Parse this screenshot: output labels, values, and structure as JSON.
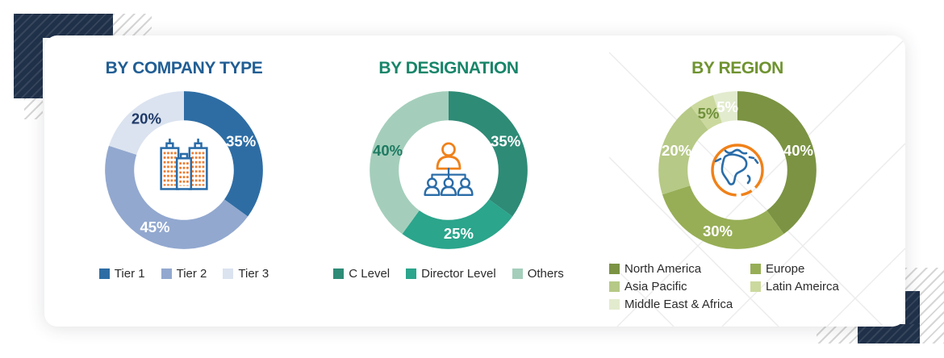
{
  "decor": {
    "navy_color": "#20314A",
    "hatch_color": "#D6D6D6",
    "chevron_line_color": "#ECECEC",
    "card_background": "#FFFFFF"
  },
  "chart_data": [
    {
      "type": "donut",
      "title": "BY COMPANY TYPE",
      "title_color": "#215E94",
      "center_icon": "buildings-icon",
      "labels": [
        "Tier 1",
        "Tier 2",
        "Tier 3"
      ],
      "values": [
        35,
        45,
        20
      ],
      "unit": "%",
      "colors": [
        "#2E6DA4",
        "#92A8CF",
        "#DBE3F0"
      ],
      "label_colors": [
        "#FFFFFF",
        "#FFFFFF",
        "#1F3A68"
      ],
      "start_angle_deg": 0,
      "direction": "clockwise",
      "legend_position": "bottom"
    },
    {
      "type": "donut",
      "title": "BY DESIGNATION",
      "title_color": "#178569",
      "center_icon": "org-chart-icon",
      "labels": [
        "C Level",
        "Director Level",
        "Others"
      ],
      "values": [
        35,
        25,
        40
      ],
      "unit": "%",
      "colors": [
        "#2E8B76",
        "#2BA58C",
        "#A4CEBB"
      ],
      "label_colors": [
        "#FFFFFF",
        "#FFFFFF",
        "#1D7A62"
      ],
      "start_angle_deg": 0,
      "direction": "clockwise",
      "legend_position": "bottom"
    },
    {
      "type": "donut",
      "title": "BY REGION",
      "title_color": "#6F9330",
      "center_icon": "globe-icon",
      "labels": [
        "North America",
        "Europe",
        "Asia Pacific",
        "Latin Ameirca",
        "Middle East & Africa"
      ],
      "values": [
        40,
        30,
        20,
        5,
        5
      ],
      "unit": "%",
      "colors": [
        "#7B9343",
        "#97AE56",
        "#B6C986",
        "#CBD99E",
        "#E2EBCE"
      ],
      "label_colors": [
        "#FFFFFF",
        "#FFFFFF",
        "#FFFFFF",
        "#6F8F3A",
        "#FFFFFF"
      ],
      "start_angle_deg": 0,
      "direction": "clockwise",
      "legend_position": "bottom-two-columns"
    }
  ]
}
